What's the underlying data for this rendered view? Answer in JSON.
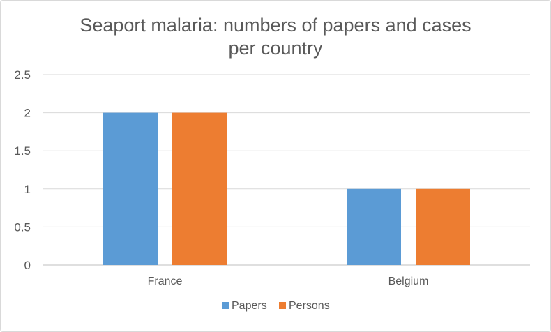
{
  "chart_data": {
    "type": "bar",
    "title": "Seaport malaria: numbers of papers and cases per country",
    "categories": [
      "France",
      "Belgium"
    ],
    "series": [
      {
        "name": "Papers",
        "values": [
          2,
          1
        ],
        "color": "#5b9bd5"
      },
      {
        "name": "Persons",
        "values": [
          2,
          1
        ],
        "color": "#ed7d31"
      }
    ],
    "ylim": [
      0,
      2.5
    ],
    "yticks": [
      "0",
      "0.5",
      "1",
      "1.5",
      "2",
      "2.5"
    ],
    "grid": true,
    "legend": "bottom"
  }
}
